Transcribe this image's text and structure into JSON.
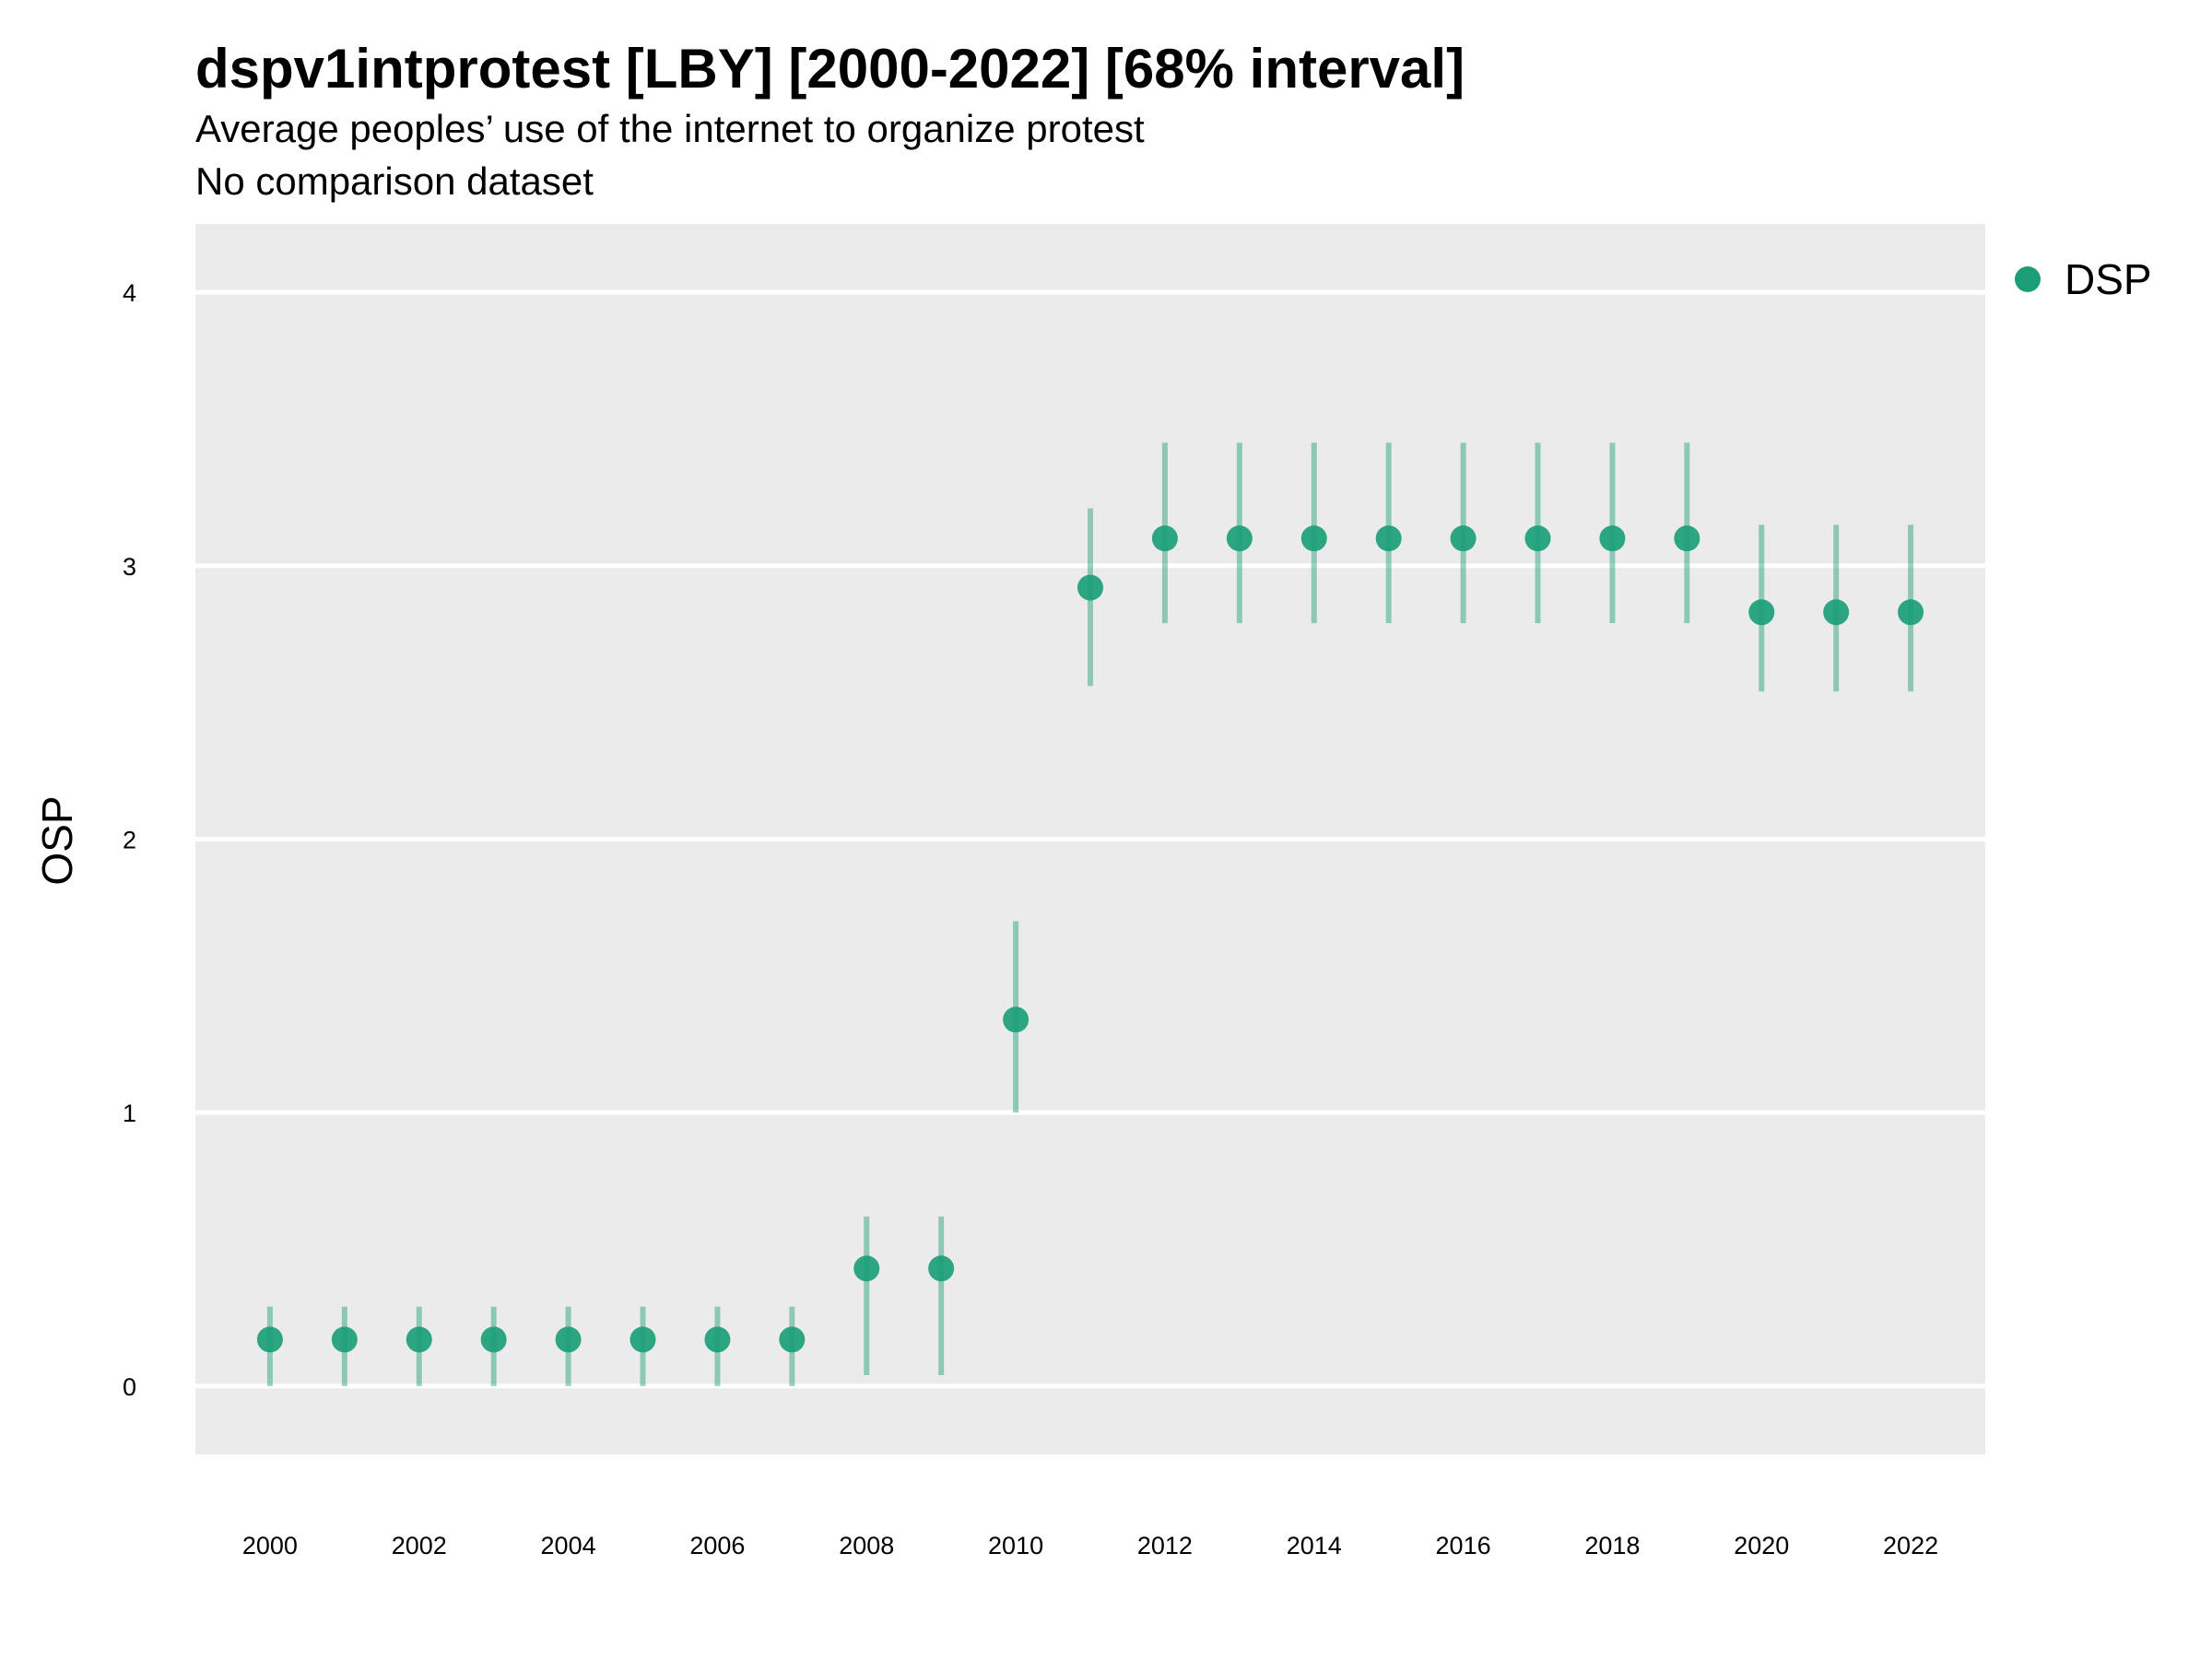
{
  "chart_data": {
    "type": "scatter",
    "title": "dspv1intprotest [LBY] [2000-2022] [68% interval]",
    "subtitle": "Average peoples’ use of the internet to organize protest",
    "subtitle2": "No comparison dataset",
    "xlabel": "",
    "ylabel": "OSP",
    "x": [
      2000,
      2001,
      2002,
      2003,
      2004,
      2005,
      2006,
      2007,
      2008,
      2009,
      2010,
      2011,
      2012,
      2013,
      2014,
      2015,
      2016,
      2017,
      2018,
      2019,
      2020,
      2021,
      2022
    ],
    "x_ticks": [
      "2000",
      "2002",
      "2004",
      "2006",
      "2008",
      "2010",
      "2012",
      "2014",
      "2016",
      "2018",
      "2020",
      "2022"
    ],
    "x_tick_values": [
      2000,
      2002,
      2004,
      2006,
      2008,
      2010,
      2012,
      2014,
      2016,
      2018,
      2020,
      2022
    ],
    "y_ticks": [
      "0",
      "1",
      "2",
      "3",
      "4"
    ],
    "y_tick_values": [
      0,
      1,
      2,
      3,
      4
    ],
    "xlim": [
      1999,
      2023
    ],
    "ylim": [
      -0.25,
      4.25
    ],
    "grid": "horizontal",
    "legend_position": "right",
    "series": [
      {
        "name": "DSP",
        "color": "#1b9e77",
        "values": [
          0.17,
          0.17,
          0.17,
          0.17,
          0.17,
          0.17,
          0.17,
          0.17,
          0.43,
          0.43,
          1.34,
          2.92,
          3.1,
          3.1,
          3.1,
          3.1,
          3.1,
          3.1,
          3.1,
          3.1,
          2.83,
          2.83,
          2.83
        ],
        "lower": [
          0.0,
          0.0,
          0.0,
          0.0,
          0.0,
          0.0,
          0.0,
          0.0,
          0.04,
          0.04,
          1.0,
          2.56,
          2.79,
          2.79,
          2.79,
          2.79,
          2.79,
          2.79,
          2.79,
          2.79,
          2.54,
          2.54,
          2.54
        ],
        "upper": [
          0.29,
          0.29,
          0.29,
          0.29,
          0.29,
          0.29,
          0.29,
          0.29,
          0.62,
          0.62,
          1.7,
          3.21,
          3.45,
          3.45,
          3.45,
          3.45,
          3.45,
          3.45,
          3.45,
          3.45,
          3.15,
          3.15,
          3.15
        ]
      }
    ]
  }
}
